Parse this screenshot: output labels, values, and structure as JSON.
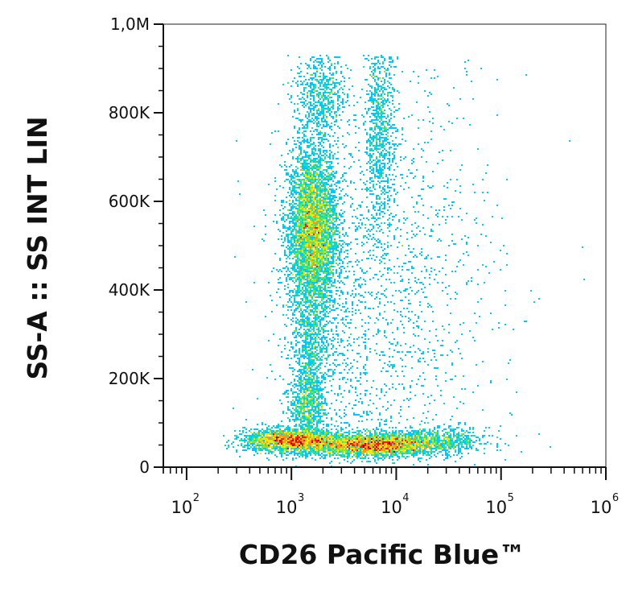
{
  "chart_data": {
    "type": "scatter",
    "subtype": "density-dot-plot",
    "title": "",
    "xlabel": "CD26 Pacific Blue™",
    "ylabel": "SS-A :: SS INT LIN",
    "x_scale": "log",
    "y_scale": "linear",
    "xlim": [
      60,
      1000000
    ],
    "ylim": [
      0,
      1000000
    ],
    "x_ticks": [
      {
        "base": "10",
        "exp": "2",
        "value": 100
      },
      {
        "base": "10",
        "exp": "3",
        "value": 1000
      },
      {
        "base": "10",
        "exp": "4",
        "value": 10000
      },
      {
        "base": "10",
        "exp": "5",
        "value": 100000
      },
      {
        "base": "10",
        "exp": "6",
        "value": 1000000
      }
    ],
    "y_ticks": [
      {
        "label": "0",
        "value": 0
      },
      {
        "label": "200K",
        "value": 200000
      },
      {
        "label": "400K",
        "value": 400000
      },
      {
        "label": "600K",
        "value": 600000
      },
      {
        "label": "800K",
        "value": 800000
      },
      {
        "label": "1,0M",
        "value": 1000000
      }
    ],
    "grid": false,
    "legend": "none",
    "colormap": [
      "#0a1adc",
      "#0078ff",
      "#00c8ff",
      "#1ee6a0",
      "#8ce628",
      "#f0e614",
      "#ff9614",
      "#f01e0a",
      "#b40000"
    ],
    "populations": [
      {
        "x_center": 1600,
        "x_spread_decades": 0.12,
        "y_center": 530000,
        "y_spread": 95000,
        "count": 5200
      },
      {
        "x_center": 1500,
        "x_spread_decades": 0.09,
        "y_center": 230000,
        "y_spread": 85000,
        "count": 900
      },
      {
        "x_center": 1400,
        "x_spread_decades": 0.08,
        "y_center": 140000,
        "y_spread": 28000,
        "count": 450
      },
      {
        "x_center": 1900,
        "x_spread_decades": 0.12,
        "y_center": 840000,
        "y_spread": 55000,
        "count": 650
      },
      {
        "x_center": 1000,
        "x_spread_decades": 0.22,
        "y_center": 60000,
        "y_spread": 13000,
        "count": 2600
      },
      {
        "x_center": 6000,
        "x_spread_decades": 0.3,
        "y_center": 50000,
        "y_spread": 13000,
        "count": 3400
      },
      {
        "x_center": 25000,
        "x_spread_decades": 0.25,
        "y_center": 60000,
        "y_spread": 15000,
        "count": 650
      },
      {
        "x_center": 7000,
        "x_spread_decades": 0.07,
        "y_center": 760000,
        "y_spread": 120000,
        "count": 900
      },
      {
        "x_center": 10000,
        "x_spread_decades": 0.5,
        "y_center": 400000,
        "y_spread": 280000,
        "count": 1300
      },
      {
        "x_center": 3000,
        "x_spread_decades": 0.3,
        "y_center": 300000,
        "y_spread": 200000,
        "count": 700
      }
    ]
  }
}
